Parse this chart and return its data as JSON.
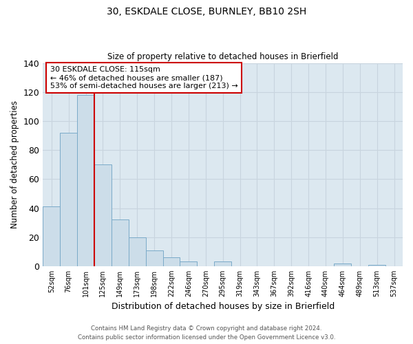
{
  "title": "30, ESKDALE CLOSE, BURNLEY, BB10 2SH",
  "subtitle": "Size of property relative to detached houses in Brierfield",
  "xlabel": "Distribution of detached houses by size in Brierfield",
  "ylabel": "Number of detached properties",
  "bar_labels": [
    "52sqm",
    "76sqm",
    "101sqm",
    "125sqm",
    "149sqm",
    "173sqm",
    "198sqm",
    "222sqm",
    "246sqm",
    "270sqm",
    "295sqm",
    "319sqm",
    "343sqm",
    "367sqm",
    "392sqm",
    "416sqm",
    "440sqm",
    "464sqm",
    "489sqm",
    "513sqm",
    "537sqm"
  ],
  "bar_values": [
    41,
    92,
    118,
    70,
    32,
    20,
    11,
    6,
    3,
    0,
    3,
    0,
    0,
    0,
    0,
    0,
    0,
    2,
    0,
    1,
    0
  ],
  "bar_color": "#ccdde9",
  "bar_edge_color": "#7aaac8",
  "ylim": [
    0,
    140
  ],
  "yticks": [
    0,
    20,
    40,
    60,
    80,
    100,
    120,
    140
  ],
  "vline_color": "#cc0000",
  "annotation_text": "30 ESKDALE CLOSE: 115sqm\n← 46% of detached houses are smaller (187)\n53% of semi-detached houses are larger (213) →",
  "annotation_box_color": "#ffffff",
  "annotation_box_edge": "#cc0000",
  "footer_line1": "Contains HM Land Registry data © Crown copyright and database right 2024.",
  "footer_line2": "Contains public sector information licensed under the Open Government Licence v3.0.",
  "background_color": "#ffffff",
  "grid_color": "#c8d4de"
}
